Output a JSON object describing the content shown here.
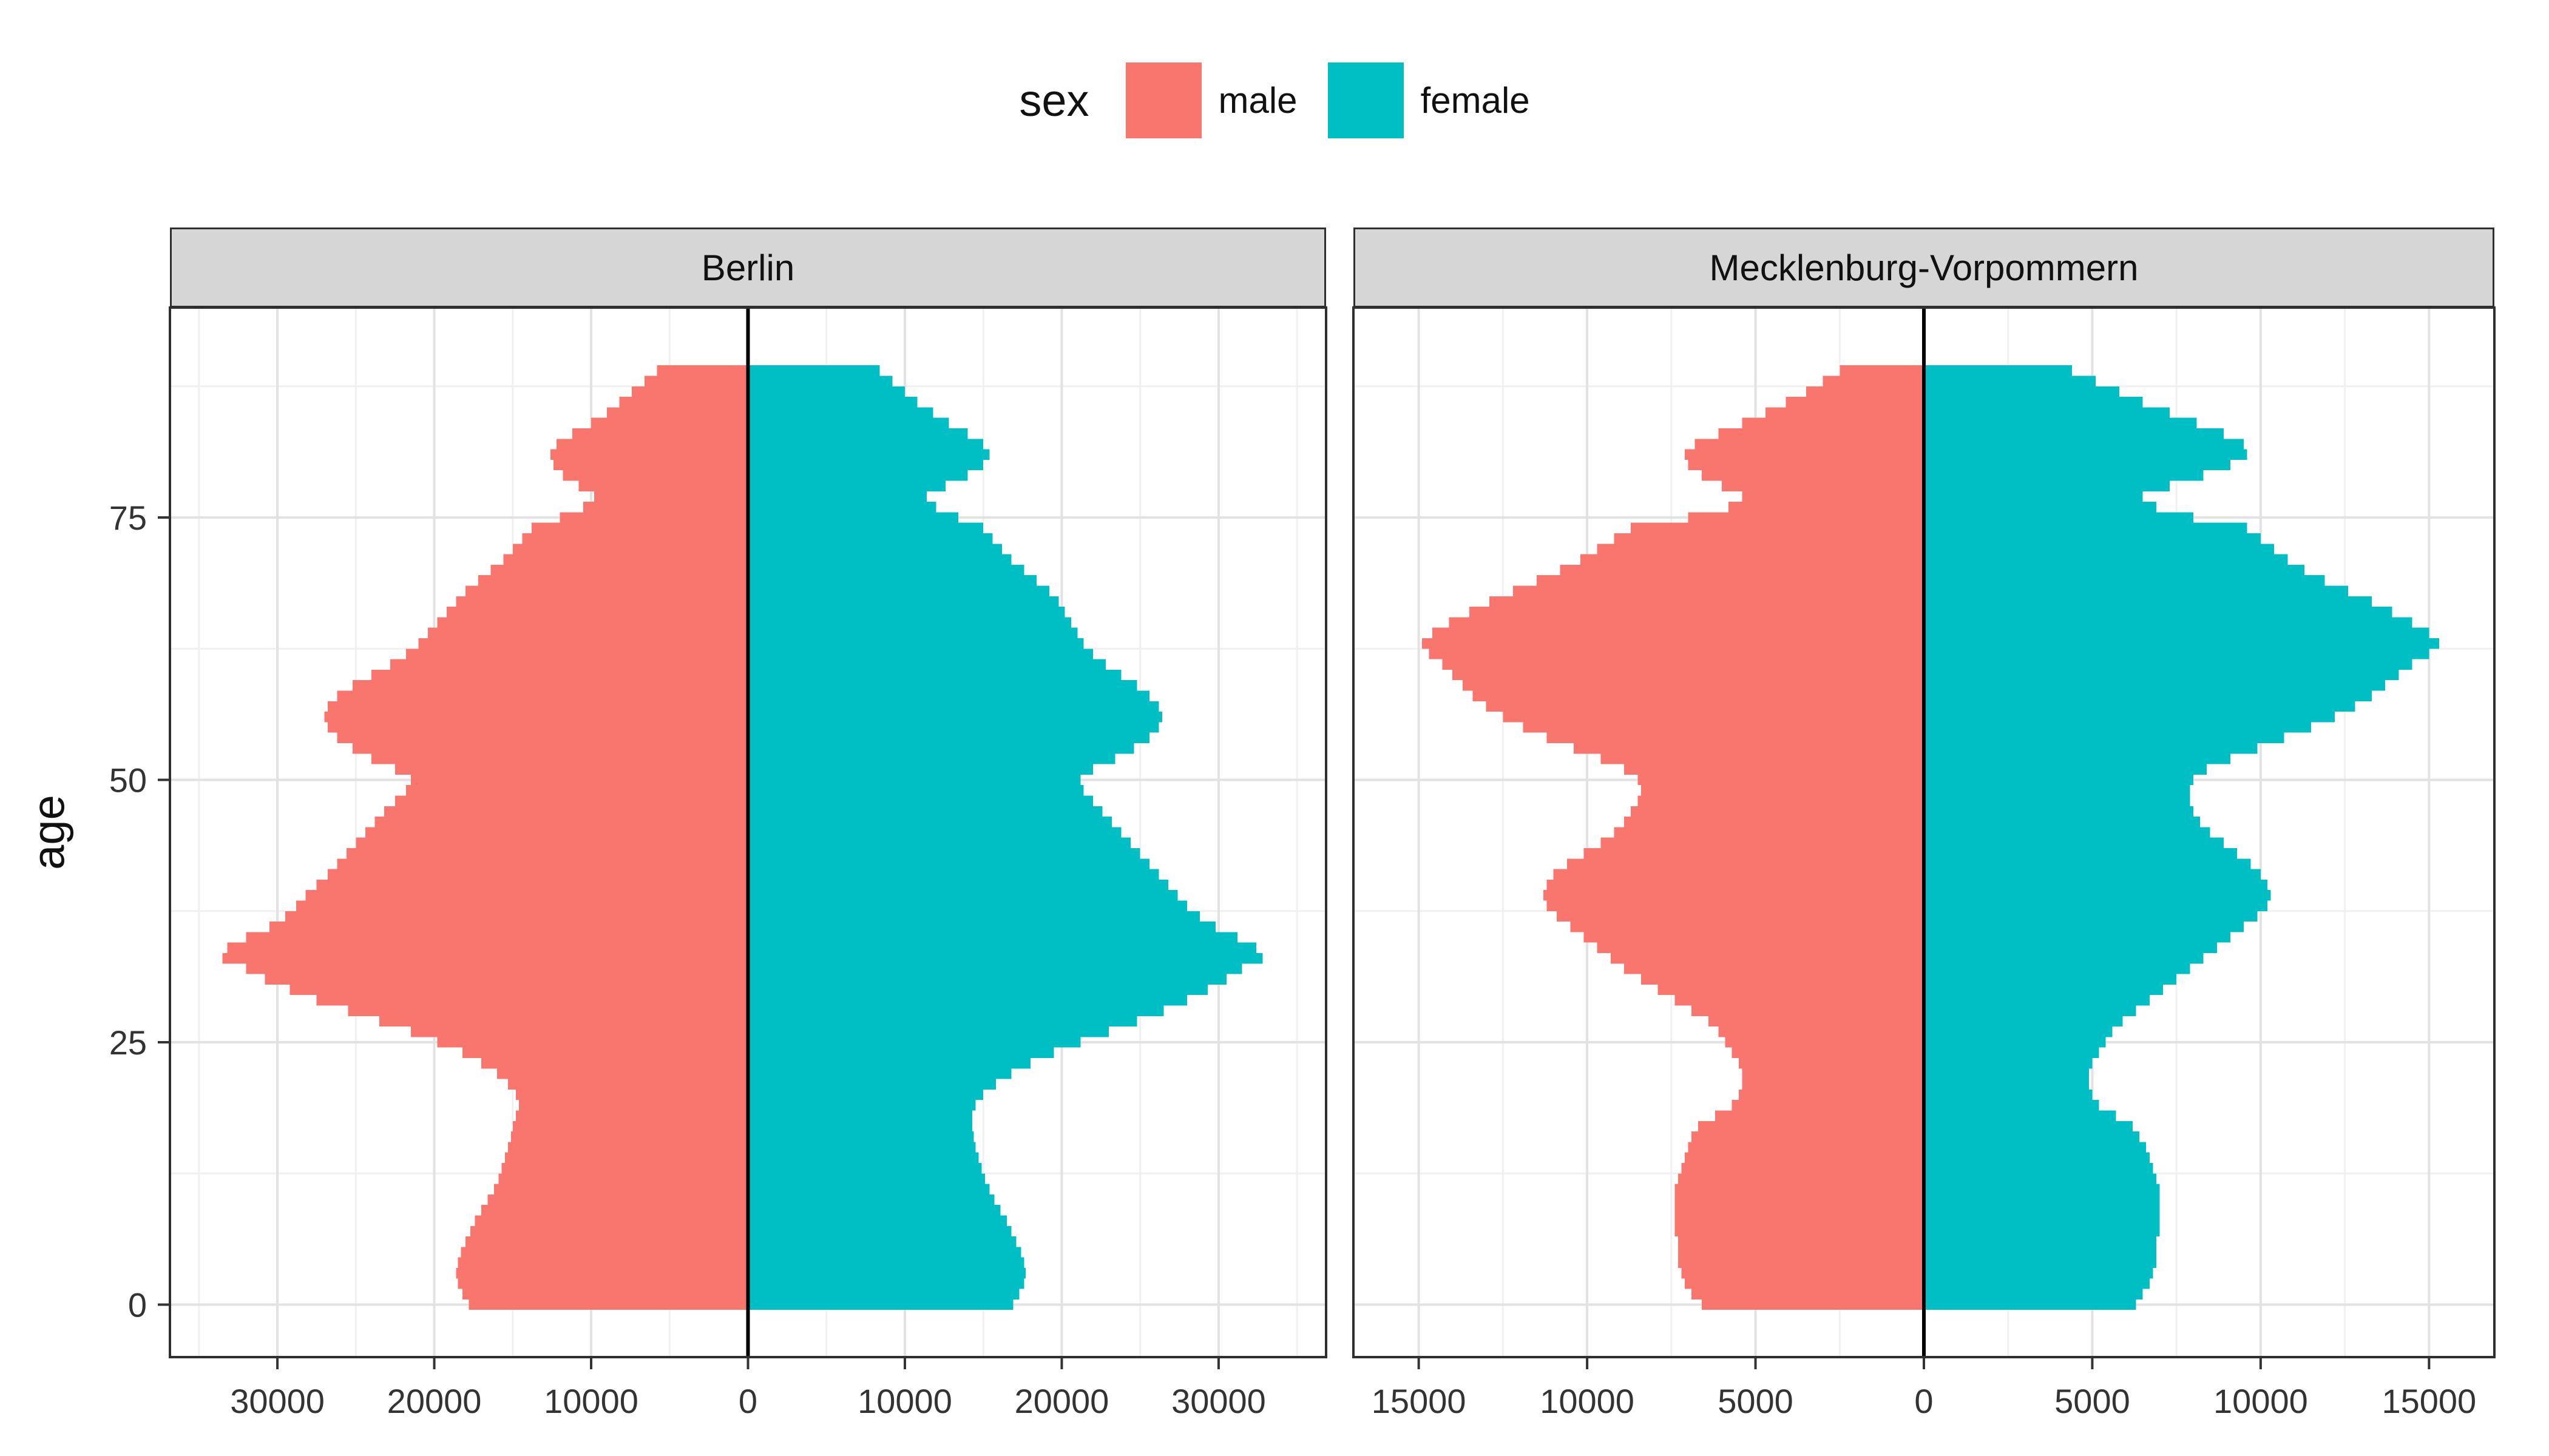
{
  "legend": {
    "title": "sex",
    "items": [
      {
        "label": "male",
        "color": "#F8766D"
      },
      {
        "label": "female",
        "color": "#00BFC4"
      }
    ]
  },
  "axes": {
    "y_label": "age",
    "y_ticks": [
      0,
      25,
      50,
      75
    ]
  },
  "chart_data": {
    "type": "bar",
    "subtype": "population-pyramid",
    "title": "",
    "xlabel": "",
    "ylabel": "age",
    "ylim": [
      -5,
      95
    ],
    "age_min": 0,
    "age_max": 89,
    "facets": [
      {
        "title": "Berlin",
        "xlim": [
          -36850,
          36850
        ],
        "major_step": 10000,
        "x_ticks": [
          -30000,
          -20000,
          -10000,
          0,
          10000,
          20000,
          30000
        ],
        "x_tick_labels": [
          "30000",
          "20000",
          "10000",
          "0",
          "10000",
          "20000",
          "30000"
        ]
      },
      {
        "title": "Mecklenburg-Vorpommern",
        "xlim": [
          -16940,
          16940
        ],
        "major_step": 5000,
        "x_ticks": [
          -15000,
          -10000,
          -5000,
          0,
          5000,
          10000,
          15000
        ],
        "x_tick_labels": [
          "15000",
          "10000",
          "5000",
          "0",
          "5000",
          "10000",
          "15000"
        ]
      }
    ],
    "series": [
      {
        "facet": "Berlin",
        "sex": "male",
        "values": [
          17800,
          18200,
          18500,
          18600,
          18500,
          18300,
          18000,
          17700,
          17400,
          17000,
          16600,
          16200,
          15900,
          15700,
          15500,
          15300,
          15100,
          15000,
          14800,
          14600,
          14800,
          15300,
          16000,
          17000,
          18200,
          19800,
          21500,
          23500,
          25500,
          27500,
          29200,
          30800,
          32000,
          33500,
          33200,
          32000,
          30500,
          29500,
          28800,
          28200,
          27500,
          26800,
          26200,
          25600,
          25000,
          24400,
          23800,
          23200,
          22500,
          21800,
          21500,
          22500,
          24000,
          25200,
          26200,
          26800,
          27000,
          26800,
          26200,
          25200,
          24000,
          22800,
          21800,
          21000,
          20400,
          19800,
          19200,
          18600,
          18000,
          17200,
          16400,
          15600,
          15000,
          14400,
          13800,
          12000,
          10500,
          9800,
          10800,
          11800,
          12400,
          12600,
          12200,
          11200,
          10000,
          9000,
          8200,
          7400,
          6600,
          5800
        ]
      },
      {
        "facet": "Berlin",
        "sex": "female",
        "values": [
          16900,
          17300,
          17600,
          17700,
          17600,
          17400,
          17100,
          16800,
          16500,
          16100,
          15700,
          15400,
          15100,
          14900,
          14700,
          14500,
          14400,
          14300,
          14300,
          14500,
          15000,
          15800,
          16800,
          18000,
          19500,
          21200,
          23000,
          24800,
          26500,
          28000,
          29300,
          30500,
          31500,
          32800,
          32400,
          31200,
          29800,
          28800,
          28000,
          27400,
          26800,
          26200,
          25600,
          25000,
          24400,
          23800,
          23200,
          22600,
          22000,
          21400,
          21200,
          22000,
          23400,
          24600,
          25600,
          26200,
          26400,
          26200,
          25600,
          24800,
          23800,
          22800,
          22000,
          21400,
          21000,
          20600,
          20200,
          19800,
          19200,
          18400,
          17600,
          16800,
          16200,
          15600,
          15000,
          13400,
          12000,
          11400,
          12600,
          14000,
          15000,
          15400,
          15000,
          14000,
          12800,
          11800,
          10800,
          10000,
          9200,
          8400
        ]
      },
      {
        "facet": "Mecklenburg-Vorpommern",
        "sex": "male",
        "values": [
          6600,
          6900,
          7100,
          7200,
          7300,
          7300,
          7300,
          7400,
          7400,
          7400,
          7400,
          7400,
          7300,
          7200,
          7100,
          7000,
          6900,
          6700,
          6200,
          5700,
          5500,
          5400,
          5400,
          5500,
          5700,
          5900,
          6100,
          6400,
          6900,
          7400,
          7900,
          8400,
          8900,
          9300,
          9700,
          10100,
          10500,
          10900,
          11200,
          11300,
          11200,
          11000,
          10600,
          10100,
          9600,
          9200,
          8900,
          8700,
          8500,
          8400,
          8500,
          8900,
          9600,
          10400,
          11200,
          11900,
          12500,
          13000,
          13400,
          13700,
          14000,
          14300,
          14700,
          14900,
          14600,
          14100,
          13500,
          12900,
          12200,
          11500,
          10800,
          10200,
          9700,
          9200,
          8700,
          7000,
          5800,
          5400,
          6000,
          6600,
          7000,
          7100,
          6800,
          6100,
          5400,
          4700,
          4100,
          3500,
          3000,
          2500
        ]
      },
      {
        "facet": "Mecklenburg-Vorpommern",
        "sex": "female",
        "values": [
          6300,
          6500,
          6700,
          6800,
          6900,
          6900,
          6900,
          7000,
          7000,
          7000,
          7000,
          7000,
          6900,
          6800,
          6700,
          6600,
          6400,
          6200,
          5700,
          5200,
          5000,
          4900,
          4900,
          5000,
          5200,
          5400,
          5600,
          5900,
          6300,
          6700,
          7100,
          7500,
          7900,
          8300,
          8700,
          9100,
          9500,
          9900,
          10200,
          10300,
          10200,
          10000,
          9700,
          9300,
          8900,
          8500,
          8200,
          8000,
          7900,
          7900,
          8000,
          8400,
          9100,
          9900,
          10700,
          11500,
          12200,
          12800,
          13300,
          13700,
          14100,
          14500,
          15000,
          15300,
          15000,
          14500,
          13900,
          13300,
          12600,
          11900,
          11300,
          10800,
          10400,
          10000,
          9600,
          8000,
          6900,
          6500,
          7300,
          8300,
          9100,
          9600,
          9500,
          8900,
          8100,
          7300,
          6500,
          5800,
          5100,
          4400
        ]
      }
    ]
  }
}
